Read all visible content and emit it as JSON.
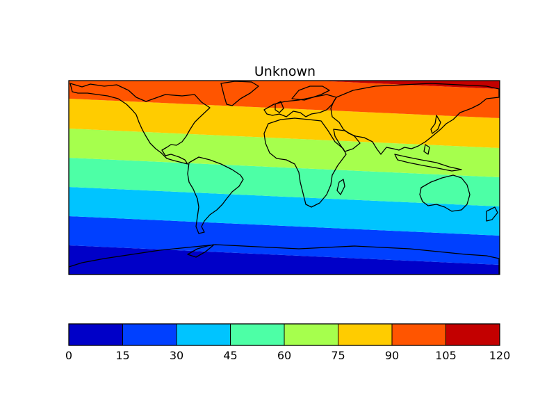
{
  "title": "Unknown",
  "map": {
    "projection": "equirectangular",
    "coastlines": true,
    "field_description": "banded field increasing northward with a slight tilt",
    "band_colors": [
      "#0000c8",
      "#0040ff",
      "#00c4ff",
      "#4dffa6",
      "#a6ff4d",
      "#ffcc00",
      "#ff5500",
      "#c30000"
    ]
  },
  "chart_data": {
    "type": "heatmap",
    "title": "Unknown",
    "levels": [
      0,
      15,
      30,
      45,
      60,
      75,
      90,
      105,
      120
    ],
    "colorbar": {
      "orientation": "horizontal",
      "placement": "bottom",
      "tick_labels": [
        "0",
        "15",
        "30",
        "45",
        "60",
        "75",
        "90",
        "105",
        "120"
      ],
      "colors": [
        "#0000c8",
        "#0040ff",
        "#00c4ff",
        "#4dffa6",
        "#a6ff4d",
        "#ffcc00",
        "#ff5500",
        "#c30000"
      ]
    }
  }
}
